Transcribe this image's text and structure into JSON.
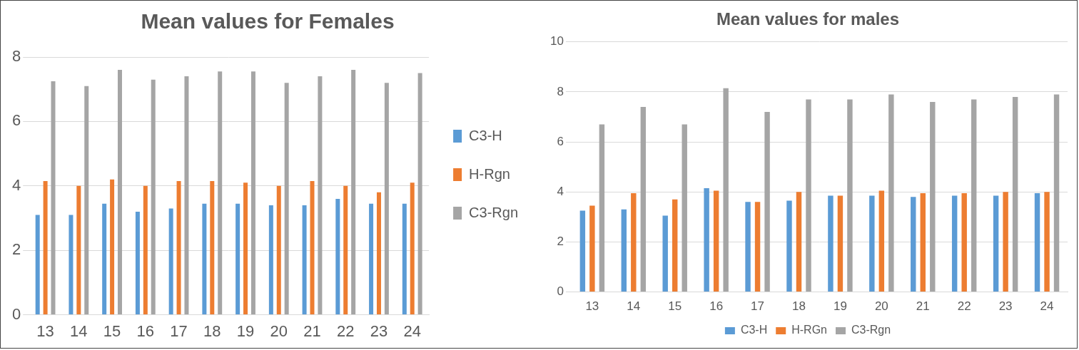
{
  "chart_data": [
    {
      "type": "bar",
      "title": "Mean values for Females",
      "categories": [
        "13",
        "14",
        "15",
        "16",
        "17",
        "18",
        "19",
        "20",
        "21",
        "22",
        "23",
        "24"
      ],
      "series": [
        {
          "name": "C3-H",
          "color": "#5b9bd5",
          "values": [
            3.1,
            3.1,
            3.45,
            3.2,
            3.3,
            3.45,
            3.45,
            3.4,
            3.4,
            3.6,
            3.45,
            3.45
          ]
        },
        {
          "name": "H-Rgn",
          "color": "#ed7d31",
          "values": [
            4.15,
            4.0,
            4.2,
            4.0,
            4.15,
            4.15,
            4.1,
            4.0,
            4.15,
            4.0,
            3.8,
            4.1
          ]
        },
        {
          "name": "C3-Rgn",
          "color": "#a5a5a5",
          "values": [
            7.25,
            7.1,
            7.6,
            7.3,
            7.4,
            7.55,
            7.55,
            7.2,
            7.4,
            7.6,
            7.2,
            7.5
          ]
        }
      ],
      "ylim": [
        0,
        8
      ],
      "yticks": [
        0,
        2,
        4,
        6,
        8
      ],
      "grid": true,
      "legend": "right"
    },
    {
      "type": "bar",
      "title": "Mean values for males",
      "categories": [
        "13",
        "14",
        "15",
        "16",
        "17",
        "18",
        "19",
        "20",
        "21",
        "22",
        "23",
        "24"
      ],
      "series": [
        {
          "name": "C3-H",
          "color": "#5b9bd5",
          "values": [
            3.25,
            3.3,
            3.05,
            4.15,
            3.6,
            3.65,
            3.85,
            3.85,
            3.8,
            3.85,
            3.85,
            3.95
          ]
        },
        {
          "name": "H-RGn",
          "color": "#ed7d31",
          "values": [
            3.45,
            3.95,
            3.7,
            4.05,
            3.6,
            4.0,
            3.85,
            4.05,
            3.95,
            3.95,
            4.0,
            4.0
          ]
        },
        {
          "name": "C3-Rgn",
          "color": "#a5a5a5",
          "values": [
            6.7,
            7.4,
            6.7,
            8.15,
            7.2,
            7.7,
            7.7,
            7.9,
            7.6,
            7.7,
            7.8,
            7.9
          ]
        }
      ],
      "ylim": [
        0,
        10
      ],
      "yticks": [
        0,
        2,
        4,
        6,
        8,
        10
      ],
      "grid": true,
      "legend": "bottom"
    }
  ]
}
